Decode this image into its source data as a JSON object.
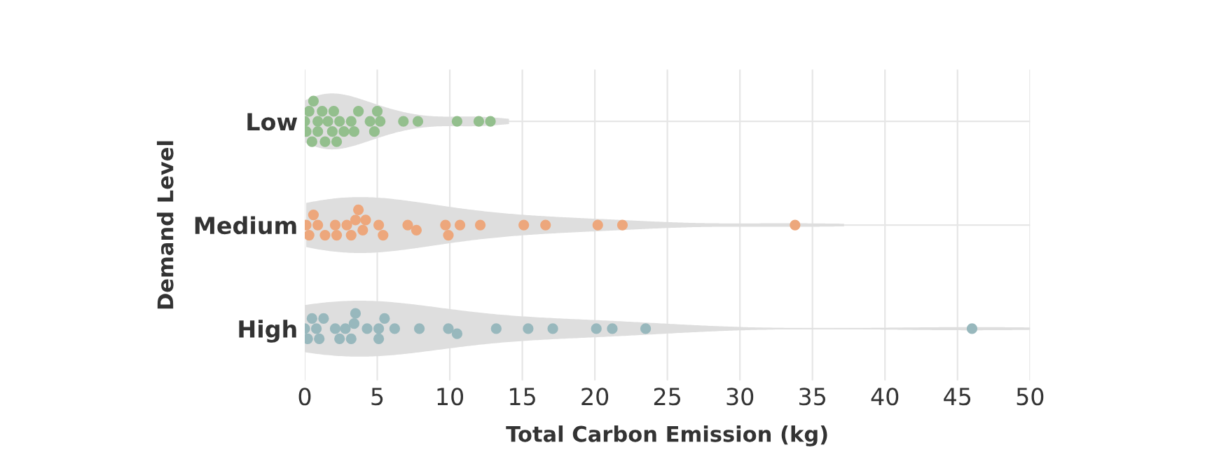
{
  "chart_data": {
    "type": "scatter",
    "orientation": "horizontal",
    "xlabel": "Total Carbon Emission (kg)",
    "ylabel": "Demand Level",
    "categories": [
      "Low",
      "Medium",
      "High"
    ],
    "xlim": [
      0,
      50
    ],
    "xticks": [
      0,
      5,
      10,
      15,
      20,
      25,
      30,
      35,
      40,
      45,
      50
    ],
    "grid": true,
    "marker": "circle",
    "series": [
      {
        "color": "#93bf8d",
        "x": [
          "Low",
          "Low",
          "Low",
          "Low",
          "Low",
          "Low",
          "Low",
          "Low",
          "Low",
          "Low",
          "Low",
          "Low",
          "Low",
          "Low",
          "Low",
          "Low",
          "Low",
          "Low",
          "Low",
          "Low",
          "Low",
          "Low",
          "Low",
          "Low",
          "Low",
          "Low",
          "Low"
        ],
        "values": [
          0.0,
          0.1,
          0.3,
          0.5,
          0.6,
          0.9,
          0.9,
          1.2,
          1.4,
          1.6,
          1.9,
          2.0,
          2.2,
          2.4,
          2.7,
          3.2,
          3.4,
          3.7,
          4.5,
          4.8,
          5.0,
          5.2,
          6.8,
          7.8,
          10.5,
          12.0,
          12.8
        ]
      },
      {
        "color": "#eda77c",
        "x": [
          "Medium",
          "Medium",
          "Medium",
          "Medium",
          "Medium",
          "Medium",
          "Medium",
          "Medium",
          "Medium",
          "Medium",
          "Medium",
          "Medium",
          "Medium",
          "Medium",
          "Medium",
          "Medium",
          "Medium",
          "Medium",
          "Medium",
          "Medium",
          "Medium",
          "Medium",
          "Medium",
          "Medium",
          "Medium",
          "Medium"
        ],
        "values": [
          0.1,
          0.3,
          0.6,
          0.9,
          1.4,
          2.1,
          2.2,
          2.9,
          3.2,
          3.5,
          3.7,
          4.0,
          4.2,
          5.1,
          5.4,
          7.1,
          7.7,
          9.7,
          9.9,
          10.7,
          12.1,
          15.1,
          16.6,
          20.2,
          21.9,
          33.8
        ]
      },
      {
        "color": "#98b8bd",
        "x": [
          "High",
          "High",
          "High",
          "High",
          "High",
          "High",
          "High",
          "High",
          "High",
          "High",
          "High",
          "High",
          "High",
          "High",
          "High",
          "High",
          "High",
          "High",
          "High",
          "High",
          "High",
          "High",
          "High",
          "High",
          "High",
          "High",
          "High"
        ],
        "values": [
          0.0,
          0.2,
          0.5,
          0.8,
          1.0,
          1.3,
          2.1,
          2.4,
          2.8,
          3.2,
          3.4,
          3.5,
          4.3,
          5.1,
          5.1,
          5.5,
          6.2,
          7.9,
          9.9,
          10.5,
          13.2,
          15.4,
          17.1,
          20.1,
          21.2,
          23.5,
          46.0
        ]
      }
    ]
  }
}
